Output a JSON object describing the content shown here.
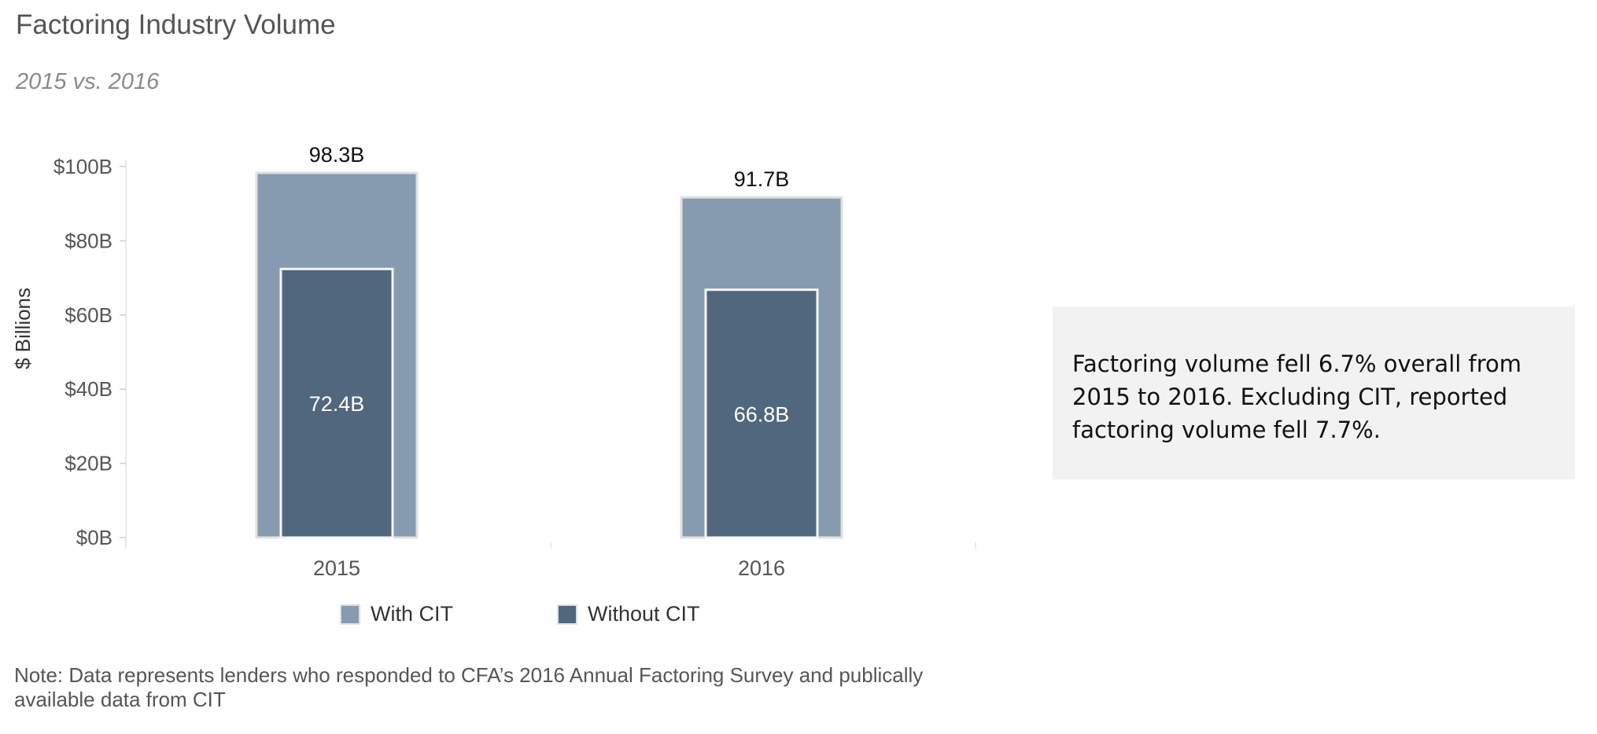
{
  "title": "Factoring Industry Volume",
  "subtitle": "2015 vs. 2016",
  "chart_data": {
    "type": "bar",
    "categories": [
      "2015",
      "2016"
    ],
    "series": [
      {
        "name": "With CIT",
        "values": [
          98.3,
          91.7
        ],
        "labels": [
          "98.3B",
          "91.7B"
        ],
        "color": "#869bb0"
      },
      {
        "name": "Without CIT",
        "values": [
          72.4,
          66.8
        ],
        "labels": [
          "72.4B",
          "66.8B"
        ],
        "color": "#51677d"
      }
    ],
    "ylabel": "$ Billions",
    "xlabel": "",
    "ylim": [
      0,
      100
    ],
    "yticks": [
      0,
      20,
      40,
      60,
      80,
      100
    ],
    "ytick_labels": [
      "$0B",
      "$20B",
      "$40B",
      "$60B",
      "$80B",
      "$100B"
    ],
    "grid": false,
    "legend_position": "bottom"
  },
  "legend": {
    "items": [
      "With CIT",
      "Without CIT"
    ]
  },
  "callout": {
    "text": "Factoring volume fell 6.7% overall from 2015 to 2016. Excluding CIT, reported factoring volume fell 7.7%."
  },
  "note": {
    "text": "Note: Data represents lenders who responded to CFA’s 2016 Annual Factoring Survey and publically available data from CIT"
  }
}
